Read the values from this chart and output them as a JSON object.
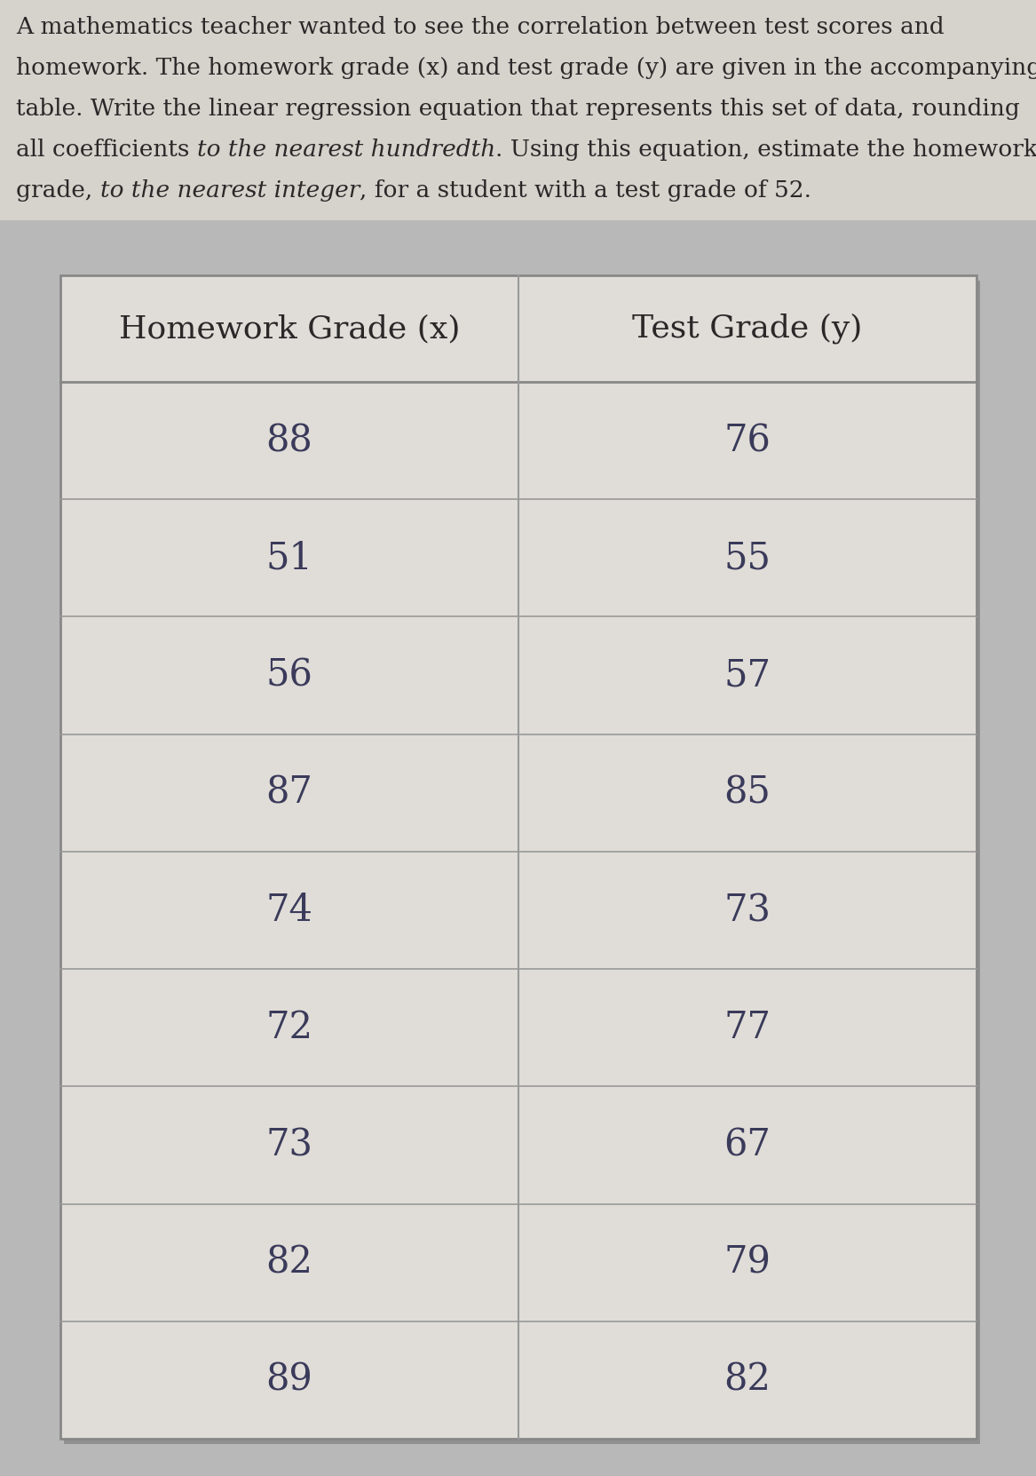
{
  "line1": "A mathematics teacher wanted to see the correlation between test scores and",
  "line2": "homework. The homework grade (x) and test grade (y) are given in the accompanying",
  "line3": "table. Write the linear regression equation that represents this set of data, rounding",
  "line4_normal1": "all coefficients ",
  "line4_italic": "to the nearest hundredth",
  "line4_normal2": ". Using this equation, estimate the homework",
  "line5_normal1": "grade, ",
  "line5_italic": "to the nearest integer",
  "line5_normal2": ", for a student with a test grade of 52.",
  "col1_header": "Homework Grade (x)",
  "col2_header": "Test Grade (y)",
  "homework_grades": [
    88,
    51,
    56,
    87,
    74,
    72,
    73,
    82,
    89
  ],
  "test_grades": [
    76,
    55,
    57,
    85,
    73,
    77,
    67,
    79,
    82
  ],
  "page_bg": "#b8b8b8",
  "top_box_bg": "#d6d2cc",
  "table_outer_bg": "#bebebe",
  "table_card_bg": "#e0ddd8",
  "table_border_color": "#888888",
  "table_line_color": "#999999",
  "para_text_color": "#2a2828",
  "header_text_color": "#2a2828",
  "data_text_color": "#3a3a5a",
  "para_fontsize": 19,
  "header_fontsize": 26,
  "data_fontsize": 30
}
